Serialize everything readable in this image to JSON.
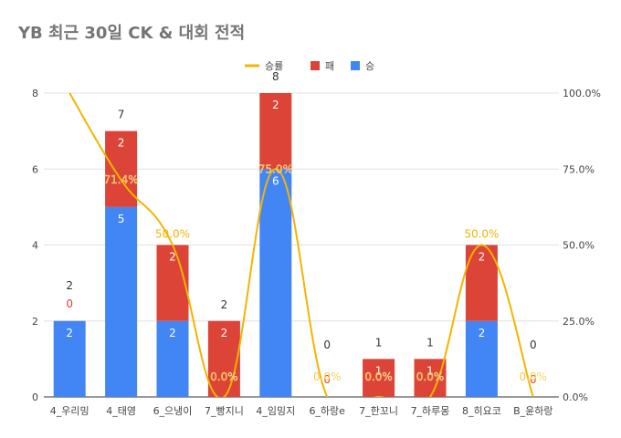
{
  "chart_data": {
    "type": "bar",
    "stacked": true,
    "title": "YB 최근 30일 CK & 대회 전적",
    "categories": [
      "4_우리밍",
      "4_태영",
      "6_으냉이",
      "7_빵지니",
      "4_임밍지",
      "6_하랑e",
      "7_한꼬니",
      "7_하루몽",
      "8_히요코",
      "B_윤하랑"
    ],
    "series": [
      {
        "name": "승",
        "color": "#4285f4",
        "values": [
          2,
          5,
          2,
          0,
          6,
          0,
          0,
          0,
          2,
          0
        ],
        "labels": [
          "2",
          "5",
          "2",
          "",
          "6",
          "",
          "",
          "",
          "2",
          ""
        ]
      },
      {
        "name": "패",
        "color": "#db4437",
        "values": [
          0,
          2,
          2,
          2,
          2,
          0,
          1,
          1,
          2,
          0
        ],
        "labels": [
          "0",
          "2",
          "2",
          "2",
          "2",
          "0",
          "1",
          "1",
          "2",
          "0"
        ]
      }
    ],
    "line_series": {
      "name": "승률",
      "color": "#f4b400",
      "values": [
        100,
        71.4,
        50,
        0,
        75,
        0,
        0,
        0,
        50,
        0
      ],
      "labels": [
        "",
        "71.4%",
        "50.0%",
        "0.0%",
        "75.0%",
        "0.0%",
        "0.0%",
        "0.0%",
        "50.0%",
        "0.0%"
      ]
    },
    "totals": [
      "2",
      "7",
      "",
      "2",
      "8",
      "0",
      "1",
      "1",
      "",
      "0"
    ],
    "y_left": {
      "min": 0,
      "max": 8,
      "ticks": [
        "0",
        "2",
        "4",
        "6",
        "8"
      ]
    },
    "y_right": {
      "min": 0,
      "max": 100,
      "ticks": [
        "0.0%",
        "25.0%",
        "50.0%",
        "75.0%",
        "100.0%"
      ]
    },
    "legend": [
      {
        "label": "승률",
        "color": "#f4b400",
        "kind": "line"
      },
      {
        "label": "패",
        "color": "#db4437",
        "kind": "box"
      },
      {
        "label": "승",
        "color": "#4285f4",
        "kind": "box"
      }
    ],
    "legend_position": "top-right"
  }
}
